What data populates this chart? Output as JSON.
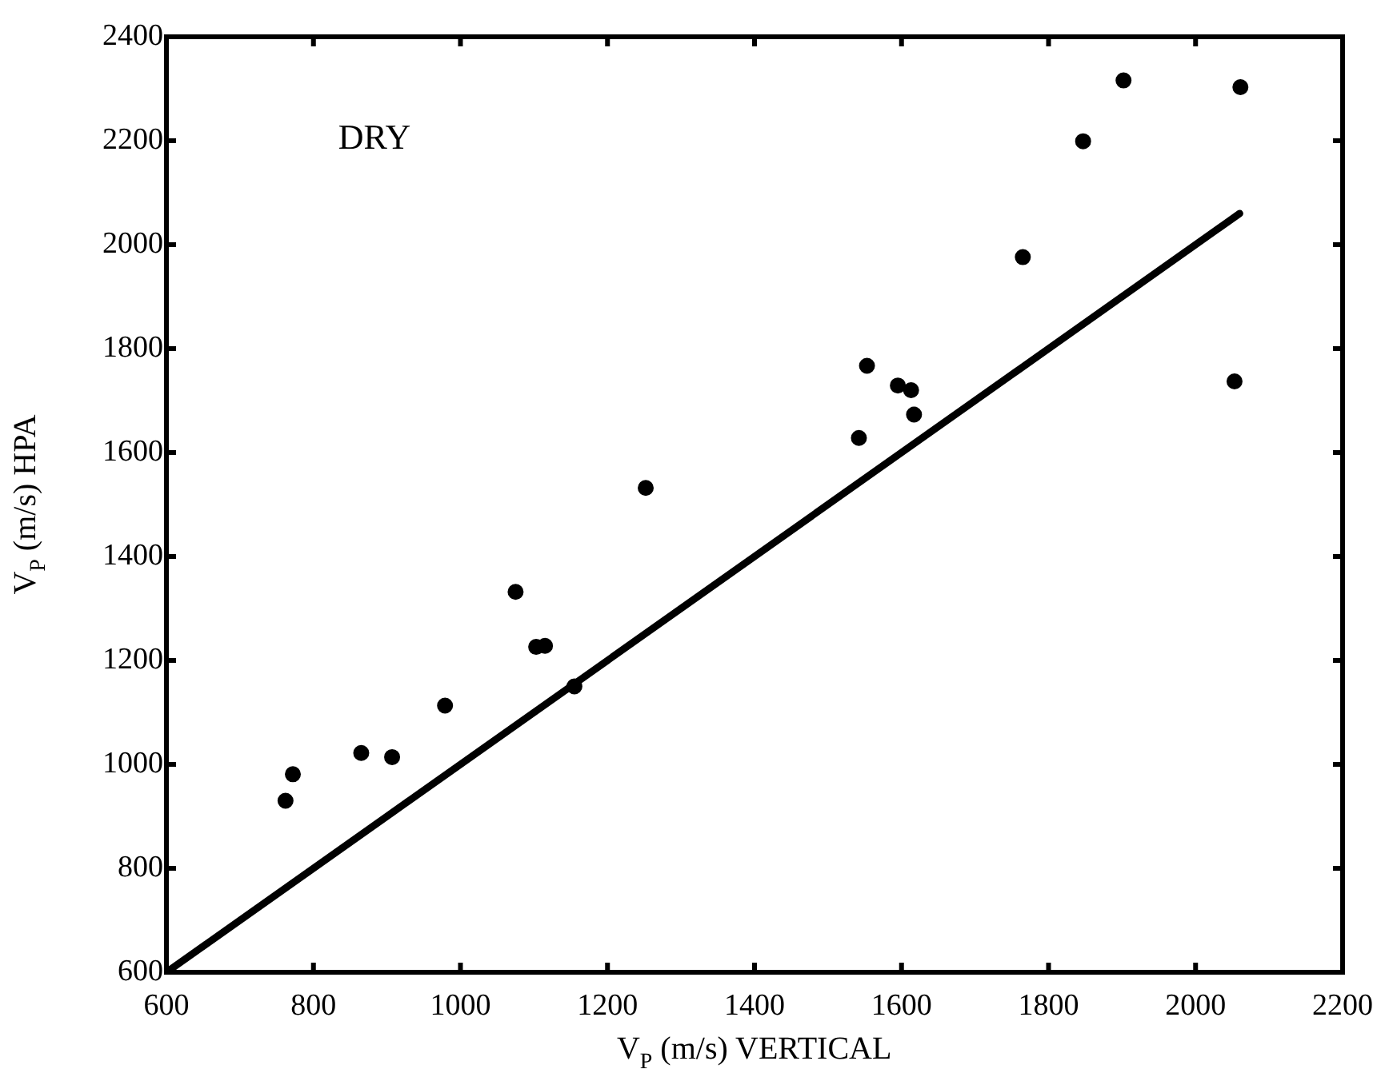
{
  "chart_data": {
    "type": "scatter",
    "xlabel": "V$_{P}$ (m/s) VERTICAL",
    "ylabel": "V$_{P}$ (m/s) HPA",
    "annotations": [
      "DRY"
    ],
    "xlim": [
      600,
      2200
    ],
    "xticks": [
      600,
      800,
      1000,
      1200,
      1400,
      1600,
      1800,
      2000,
      2200
    ],
    "ylim": [
      600,
      2400
    ],
    "yticks": [
      600,
      800,
      1000,
      1200,
      1400,
      1600,
      1800,
      2000,
      2200,
      2400
    ],
    "grid": false,
    "legend": false,
    "series": [
      {
        "color": "#000000",
        "marker": "circle",
        "x": [
          762,
          772,
          865,
          907,
          979,
          1075,
          1103,
          1115,
          1155,
          1252,
          1542,
          1553,
          1595,
          1613,
          1617,
          1765,
          1847,
          1902,
          2061,
          2053
        ],
        "values": [
          930,
          981,
          1022,
          1014,
          1113,
          1332,
          1226,
          1228,
          1150,
          1532,
          1628,
          1767,
          1729,
          1720,
          1673,
          1976,
          2199,
          2316,
          2303,
          1737
        ]
      },
      {
        "type": "line",
        "color": "#000000",
        "line_style": "solid",
        "marker": "none",
        "x": [
          600,
          2060
        ],
        "values": [
          600,
          2060
        ]
      }
    ]
  }
}
